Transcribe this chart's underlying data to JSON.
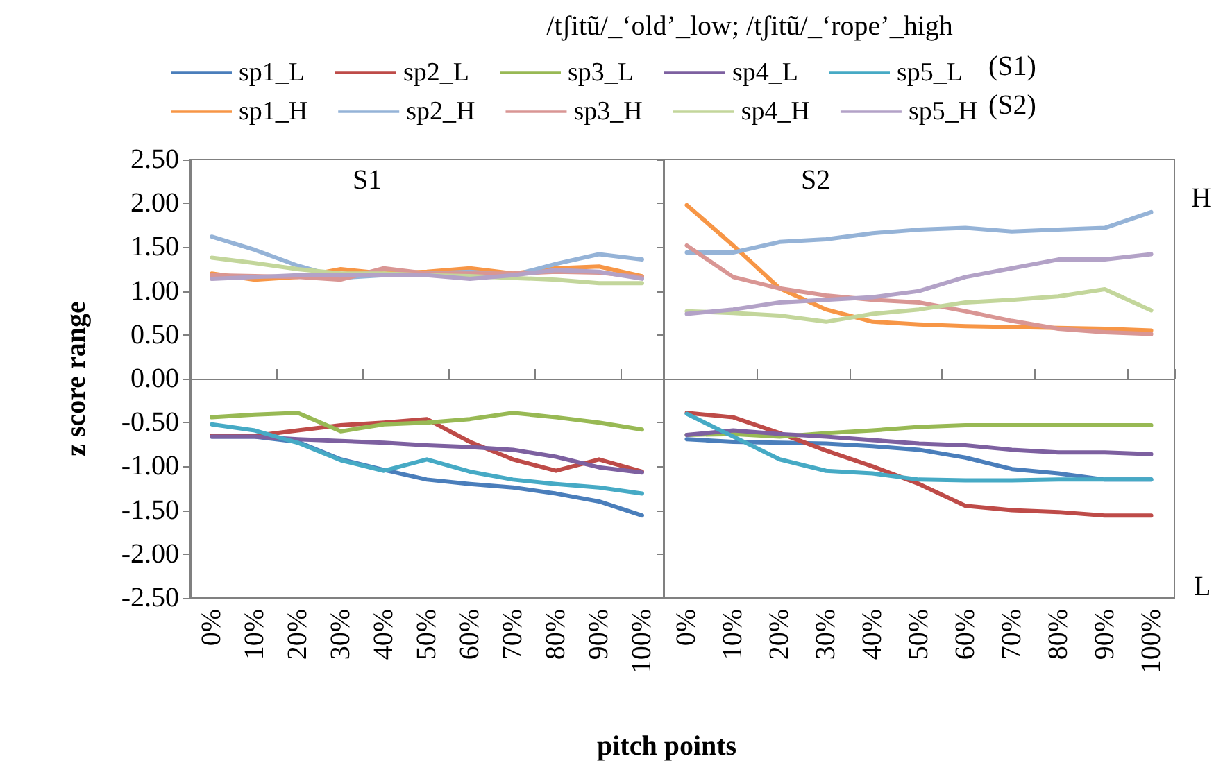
{
  "chart_data": [
    {
      "type": "line",
      "title": "/tʃitũ/_‘old’_low; /tʃitũ/_‘rope’_high",
      "xlabel": "pitch points",
      "ylabel": "z score range",
      "annotations": [
        "(S1)",
        "(S2)",
        "S1"
      ],
      "categories": [
        "0%",
        "10%",
        "20%",
        "30%",
        "40%",
        "50%",
        "60%",
        "70%",
        "80%",
        "90%",
        "100%"
      ],
      "ylim": [
        -2.5,
        2.5
      ],
      "yticks": [
        {
          "value": 2.5,
          "label": "2.50"
        },
        {
          "value": 2,
          "label": "2.00"
        },
        {
          "value": 1.5,
          "label": "1.50"
        },
        {
          "value": 1,
          "label": "1.00"
        },
        {
          "value": 0.5,
          "label": "0.50"
        },
        {
          "value": 0,
          "label": "0.00"
        },
        {
          "value": -0.5,
          "label": "-0.50"
        },
        {
          "value": -1,
          "label": "-1.00"
        },
        {
          "value": -1.5,
          "label": "-1.50"
        },
        {
          "value": -2,
          "label": "-2.00"
        },
        {
          "value": -2.5,
          "label": "-2.50"
        }
      ],
      "legend": "top",
      "marker": "none",
      "line_style": "solid",
      "series": [
        {
          "name": "sp1_L",
          "color": "#4a7ebb",
          "values": [
            -0.66,
            -0.66,
            -0.72,
            -0.92,
            -1.04,
            -1.15,
            -1.2,
            -1.24,
            -1.31,
            -1.4,
            -1.56
          ]
        },
        {
          "name": "sp2_L",
          "color": "#be4b48",
          "values": [
            -0.65,
            -0.65,
            -0.59,
            -0.53,
            -0.5,
            -0.46,
            -0.72,
            -0.92,
            -1.05,
            -0.92,
            -1.06
          ]
        },
        {
          "name": "sp3_L",
          "color": "#98b954",
          "values": [
            -0.44,
            -0.41,
            -0.39,
            -0.6,
            -0.52,
            -0.5,
            -0.46,
            -0.39,
            -0.44,
            -0.5,
            -0.58
          ]
        },
        {
          "name": "sp4_L",
          "color": "#7d60a0",
          "values": [
            -0.66,
            -0.66,
            -0.69,
            -0.71,
            -0.73,
            -0.76,
            -0.78,
            -0.81,
            -0.89,
            -1.01,
            -1.07
          ]
        },
        {
          "name": "sp5_L",
          "color": "#46aac5",
          "values": [
            -0.52,
            -0.59,
            -0.73,
            -0.93,
            -1.05,
            -0.92,
            -1.06,
            -1.15,
            -1.2,
            -1.24,
            -1.31
          ]
        },
        {
          "name": "sp1_H",
          "color": "#f79646",
          "values": [
            1.2,
            1.13,
            1.16,
            1.25,
            1.2,
            1.22,
            1.26,
            1.2,
            1.26,
            1.28,
            1.17
          ]
        },
        {
          "name": "sp2_H",
          "color": "#95b3d7",
          "values": [
            1.62,
            1.47,
            1.29,
            1.15,
            1.18,
            1.2,
            1.22,
            1.18,
            1.31,
            1.42,
            1.36
          ]
        },
        {
          "name": "sp3_H",
          "color": "#d99694",
          "values": [
            1.18,
            1.17,
            1.16,
            1.13,
            1.26,
            1.2,
            1.2,
            1.2,
            1.22,
            1.21,
            1.16
          ]
        },
        {
          "name": "sp4_H",
          "color": "#c3d69b",
          "values": [
            1.38,
            1.32,
            1.25,
            1.2,
            1.2,
            1.18,
            1.17,
            1.15,
            1.13,
            1.09,
            1.09
          ]
        },
        {
          "name": "sp5_H",
          "color": "#b3a2c7",
          "values": [
            1.14,
            1.16,
            1.18,
            1.18,
            1.18,
            1.18,
            1.14,
            1.18,
            1.24,
            1.22,
            1.14
          ]
        }
      ]
    },
    {
      "type": "line",
      "annotations": [
        "S2",
        "H",
        "L"
      ],
      "tick_labels": "x",
      "categories": [
        "0%",
        "10%",
        "20%",
        "30%",
        "40%",
        "50%",
        "60%",
        "70%",
        "80%",
        "90%",
        "100%"
      ],
      "ylim": [
        -2.5,
        2.5
      ],
      "yticks": [
        {
          "value": 2.5,
          "label": null
        },
        {
          "value": 2,
          "label": null
        },
        {
          "value": 1.5,
          "label": null
        },
        {
          "value": 1,
          "label": null
        },
        {
          "value": 0.5,
          "label": null
        },
        {
          "value": 0,
          "label": null
        },
        {
          "value": -0.5,
          "label": null
        },
        {
          "value": -1,
          "label": null
        },
        {
          "value": -1.5,
          "label": null
        },
        {
          "value": -2,
          "label": null
        },
        {
          "value": -2.5,
          "label": null
        }
      ],
      "marker": "none",
      "line_style": "solid",
      "series": [
        {
          "color": "#4a7ebb",
          "values": [
            -0.69,
            -0.72,
            -0.73,
            -0.74,
            -0.77,
            -0.81,
            -0.9,
            -1.03,
            -1.08,
            -1.15,
            -1.15
          ]
        },
        {
          "color": "#be4b48",
          "values": [
            -0.39,
            -0.44,
            -0.62,
            -0.82,
            -1.0,
            -1.2,
            -1.45,
            -1.5,
            -1.52,
            -1.56,
            -1.56
          ]
        },
        {
          "color": "#98b954",
          "values": [
            -0.64,
            -0.63,
            -0.66,
            -0.62,
            -0.59,
            -0.55,
            -0.53,
            -0.53,
            -0.53,
            -0.53,
            -0.53
          ]
        },
        {
          "color": "#7d60a0",
          "values": [
            -0.64,
            -0.59,
            -0.63,
            -0.66,
            -0.7,
            -0.74,
            -0.76,
            -0.81,
            -0.84,
            -0.84,
            -0.86
          ]
        },
        {
          "color": "#46aac5",
          "values": [
            -0.4,
            -0.66,
            -0.92,
            -1.05,
            -1.08,
            -1.15,
            -1.16,
            -1.16,
            -1.15,
            -1.15,
            -1.15
          ]
        },
        {
          "color": "#f79646",
          "values": [
            1.98,
            1.52,
            1.03,
            0.79,
            0.65,
            0.62,
            0.6,
            0.59,
            0.58,
            0.57,
            0.55
          ]
        },
        {
          "color": "#95b3d7",
          "values": [
            1.44,
            1.44,
            1.56,
            1.59,
            1.66,
            1.7,
            1.72,
            1.68,
            1.7,
            1.72,
            1.9
          ]
        },
        {
          "color": "#d99694",
          "values": [
            1.52,
            1.16,
            1.03,
            0.95,
            0.9,
            0.87,
            0.77,
            0.66,
            0.57,
            0.53,
            0.51
          ]
        },
        {
          "color": "#c3d69b",
          "values": [
            0.77,
            0.75,
            0.72,
            0.65,
            0.74,
            0.79,
            0.87,
            0.9,
            0.94,
            1.02,
            0.78
          ]
        },
        {
          "color": "#b3a2c7",
          "values": [
            0.74,
            0.79,
            0.87,
            0.9,
            0.93,
            1.0,
            1.16,
            1.26,
            1.36,
            1.36,
            1.42
          ]
        }
      ]
    }
  ]
}
